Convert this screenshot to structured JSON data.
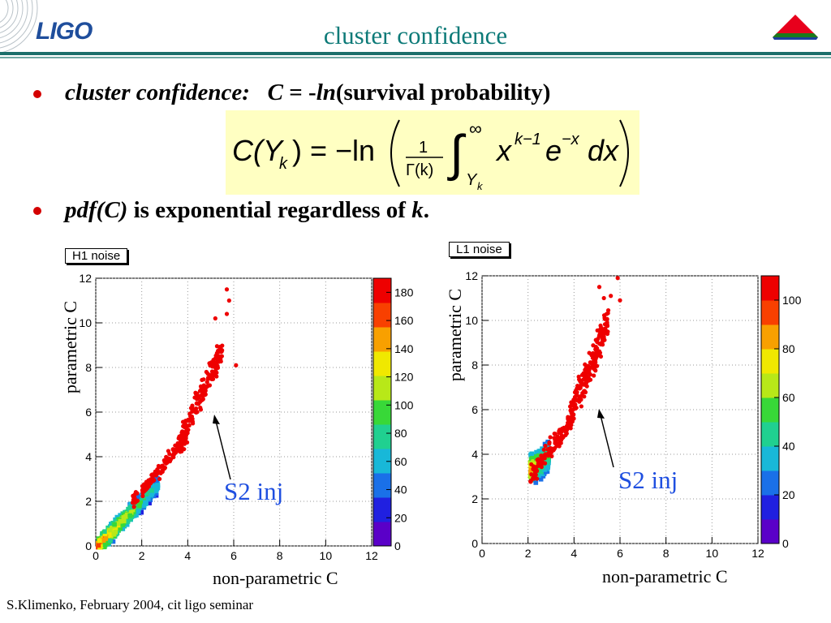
{
  "header": {
    "logo_text": "LIGO",
    "title": "cluster confidence"
  },
  "bullets": [
    {
      "lead": "cluster  confidence:",
      "mid": "C",
      "eq": " = -",
      "ln": "ln",
      "tail": "(survival probability)"
    },
    {
      "lead": "pdf(C)",
      "tail": " is exponential regardless of ",
      "k": "k",
      "dot": "."
    }
  ],
  "formula": {
    "lhs": "C(Y",
    "sub_k": "k",
    "rhs": ") = −ln",
    "frac_num": "1",
    "frac_den": "Γ(k)",
    "upper_limit": "∞",
    "lower_limit": "Y",
    "lower_sub": "k",
    "integrand": "x",
    "exp1": "k−1",
    "e": "e",
    "exp2": "−x",
    "dx": "dx"
  },
  "plots": [
    {
      "label": "H1 noise",
      "ylabel": "parametric C",
      "xlabel": "non-parametric C",
      "annotation": "S2 inj",
      "colorbar_ticks": [
        "0",
        "20",
        "40",
        "60",
        "80",
        "100",
        "120",
        "140",
        "160",
        "180"
      ]
    },
    {
      "label": "L1 noise",
      "ylabel": "parametric C",
      "xlabel": "non-parametric C",
      "annotation": "S2 inj",
      "colorbar_ticks": [
        "0",
        "20",
        "40",
        "60",
        "80",
        "100"
      ]
    }
  ],
  "axis_ticks": [
    "0",
    "2",
    "4",
    "6",
    "8",
    "10",
    "12"
  ],
  "chart_data": [
    {
      "type": "scatter",
      "title": "H1 noise",
      "xlabel": "non-parametric C",
      "ylabel": "parametric C",
      "xlim": [
        0,
        12
      ],
      "ylim": [
        0,
        12
      ],
      "colorbar_max": 190,
      "series": [
        {
          "name": "S2 inj"
        }
      ]
    },
    {
      "type": "scatter",
      "title": "L1 noise",
      "xlabel": "non-parametric C",
      "ylabel": "parametric C",
      "xlim": [
        0,
        12
      ],
      "ylim": [
        0,
        12
      ],
      "colorbar_max": 110,
      "series": [
        {
          "name": "S2 inj"
        }
      ]
    }
  ],
  "colors": {
    "title": "#0d7a78",
    "bullet": "#d40000",
    "annotation": "#1f4fe0",
    "scatter": "#ee0000",
    "formula_bg": "#ffffc2"
  },
  "footer": "S.Klimenko, February 2004, cit ligo seminar"
}
